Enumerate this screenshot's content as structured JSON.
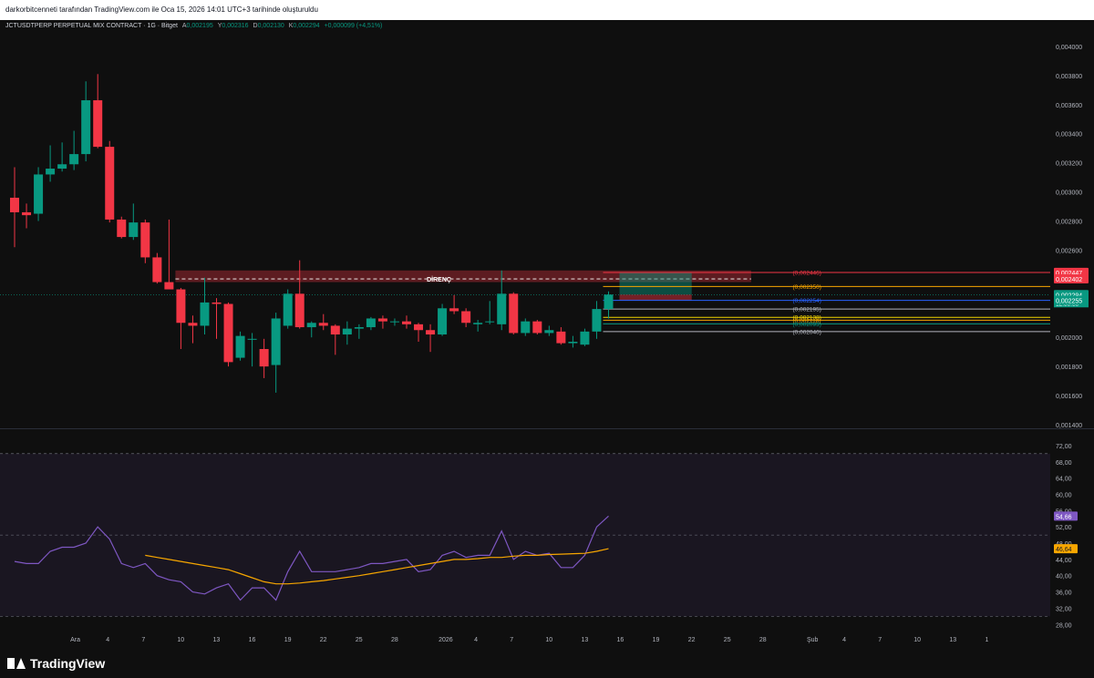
{
  "header": {
    "attribution": "darkorbitcenneti tarafından TradingView.com ile Oca 15, 2026 14:01 UTC+3 tarihinde oluşturuldu"
  },
  "legend": {
    "symbol": "JCTUSDTPERP PERPETUAL MIX CONTRACT · 1G · Bitget",
    "open_key": "A",
    "open": "0,002195",
    "high_key": "Y",
    "high": "0,002316",
    "low_key": "D",
    "low": "0,002130",
    "close_key": "K",
    "close": "0,002294",
    "change": "+0,000099 (+4,51%)"
  },
  "footer": {
    "logo": "TradingView"
  },
  "chart_data": [
    {
      "type": "candlestick",
      "title": "JCTUSDTPERP PERPETUAL MIX CONTRACT · 1G · Bitget",
      "ylim": [
        0.0014,
        0.0041
      ],
      "y_ticks": [
        "0,004000",
        "0,003800",
        "0,003600",
        "0,003400",
        "0,003200",
        "0,003000",
        "0,002800",
        "0,002600",
        "0,002000",
        "0,001800",
        "0,001600",
        "0,001400"
      ],
      "x_ticks": [
        {
          "i": 5,
          "label": "Ara"
        },
        {
          "i": 8,
          "label": "4"
        },
        {
          "i": 11,
          "label": "7"
        },
        {
          "i": 14,
          "label": "10"
        },
        {
          "i": 17,
          "label": "13"
        },
        {
          "i": 20,
          "label": "16"
        },
        {
          "i": 23,
          "label": "19"
        },
        {
          "i": 26,
          "label": "22"
        },
        {
          "i": 29,
          "label": "25"
        },
        {
          "i": 32,
          "label": "28"
        },
        {
          "i": 36,
          "label": "2026"
        },
        {
          "i": 39,
          "label": "4"
        },
        {
          "i": 42,
          "label": "7"
        },
        {
          "i": 45,
          "label": "10"
        },
        {
          "i": 48,
          "label": "13"
        },
        {
          "i": 51,
          "label": "16"
        },
        {
          "i": 54,
          "label": "19"
        },
        {
          "i": 57,
          "label": "22"
        },
        {
          "i": 60,
          "label": "25"
        },
        {
          "i": 63,
          "label": "28"
        },
        {
          "i": 67,
          "label": "Şub"
        },
        {
          "i": 70,
          "label": "4"
        },
        {
          "i": 73,
          "label": "7"
        },
        {
          "i": 76,
          "label": "10"
        },
        {
          "i": 79,
          "label": "13"
        },
        {
          "i": 82,
          "label": "1"
        }
      ],
      "candles": [
        {
          "o": 0.00296,
          "h": 0.00317,
          "l": 0.00262,
          "c": 0.00286
        },
        {
          "o": 0.00286,
          "h": 0.00292,
          "l": 0.00275,
          "c": 0.00284
        },
        {
          "o": 0.00285,
          "h": 0.00317,
          "l": 0.0028,
          "c": 0.00312
        },
        {
          "o": 0.00312,
          "h": 0.00332,
          "l": 0.00307,
          "c": 0.00316
        },
        {
          "o": 0.00316,
          "h": 0.00334,
          "l": 0.00314,
          "c": 0.00319
        },
        {
          "o": 0.00319,
          "h": 0.00342,
          "l": 0.00315,
          "c": 0.00326
        },
        {
          "o": 0.00326,
          "h": 0.00376,
          "l": 0.00321,
          "c": 0.00363
        },
        {
          "o": 0.00363,
          "h": 0.00381,
          "l": 0.0033,
          "c": 0.00331
        },
        {
          "o": 0.00331,
          "h": 0.00335,
          "l": 0.00279,
          "c": 0.00281
        },
        {
          "o": 0.00281,
          "h": 0.00283,
          "l": 0.00268,
          "c": 0.00269
        },
        {
          "o": 0.00269,
          "h": 0.00292,
          "l": 0.00267,
          "c": 0.00279
        },
        {
          "o": 0.00279,
          "h": 0.00281,
          "l": 0.00251,
          "c": 0.00255
        },
        {
          "o": 0.00255,
          "h": 0.00258,
          "l": 0.00237,
          "c": 0.00238
        },
        {
          "o": 0.00238,
          "h": 0.00281,
          "l": 0.00234,
          "c": 0.00233
        },
        {
          "o": 0.00233,
          "h": 0.00234,
          "l": 0.00192,
          "c": 0.0021
        },
        {
          "o": 0.0021,
          "h": 0.00215,
          "l": 0.00196,
          "c": 0.00208
        },
        {
          "o": 0.00208,
          "h": 0.00241,
          "l": 0.00202,
          "c": 0.00224
        },
        {
          "o": 0.00224,
          "h": 0.00227,
          "l": 0.00199,
          "c": 0.00223
        },
        {
          "o": 0.00223,
          "h": 0.00224,
          "l": 0.0018,
          "c": 0.00183
        },
        {
          "o": 0.00186,
          "h": 0.00204,
          "l": 0.00184,
          "c": 0.00201
        },
        {
          "o": 0.00199,
          "h": 0.00203,
          "l": 0.0018,
          "c": 0.00199
        },
        {
          "o": 0.00192,
          "h": 0.00199,
          "l": 0.00172,
          "c": 0.0018
        },
        {
          "o": 0.00181,
          "h": 0.00217,
          "l": 0.00162,
          "c": 0.00213
        },
        {
          "o": 0.00208,
          "h": 0.00233,
          "l": 0.00206,
          "c": 0.0023
        },
        {
          "o": 0.0023,
          "h": 0.00253,
          "l": 0.00206,
          "c": 0.00207
        },
        {
          "o": 0.00207,
          "h": 0.00211,
          "l": 0.002,
          "c": 0.0021
        },
        {
          "o": 0.0021,
          "h": 0.00216,
          "l": 0.00205,
          "c": 0.00208
        },
        {
          "o": 0.00208,
          "h": 0.00209,
          "l": 0.00188,
          "c": 0.00202
        },
        {
          "o": 0.00202,
          "h": 0.00211,
          "l": 0.00195,
          "c": 0.00206
        },
        {
          "o": 0.00206,
          "h": 0.00209,
          "l": 0.00199,
          "c": 0.00207
        },
        {
          "o": 0.00207,
          "h": 0.00214,
          "l": 0.00205,
          "c": 0.00213
        },
        {
          "o": 0.00213,
          "h": 0.00215,
          "l": 0.00206,
          "c": 0.00211
        },
        {
          "o": 0.00211,
          "h": 0.00213,
          "l": 0.00208,
          "c": 0.00211
        },
        {
          "o": 0.00211,
          "h": 0.00215,
          "l": 0.00206,
          "c": 0.00209
        },
        {
          "o": 0.00209,
          "h": 0.0021,
          "l": 0.00197,
          "c": 0.00205
        },
        {
          "o": 0.00205,
          "h": 0.00209,
          "l": 0.0019,
          "c": 0.00202
        },
        {
          "o": 0.00202,
          "h": 0.00223,
          "l": 0.00201,
          "c": 0.0022
        },
        {
          "o": 0.0022,
          "h": 0.00229,
          "l": 0.00216,
          "c": 0.00218
        },
        {
          "o": 0.00218,
          "h": 0.0022,
          "l": 0.00207,
          "c": 0.0021
        },
        {
          "o": 0.00209,
          "h": 0.00212,
          "l": 0.00204,
          "c": 0.0021
        },
        {
          "o": 0.00211,
          "h": 0.00225,
          "l": 0.00209,
          "c": 0.00211
        },
        {
          "o": 0.00209,
          "h": 0.00246,
          "l": 0.00205,
          "c": 0.0023
        },
        {
          "o": 0.0023,
          "h": 0.00231,
          "l": 0.00202,
          "c": 0.00203
        },
        {
          "o": 0.00203,
          "h": 0.00213,
          "l": 0.00201,
          "c": 0.00211
        },
        {
          "o": 0.00211,
          "h": 0.00212,
          "l": 0.00202,
          "c": 0.00203
        },
        {
          "o": 0.00203,
          "h": 0.00208,
          "l": 0.00201,
          "c": 0.00205
        },
        {
          "o": 0.00204,
          "h": 0.00207,
          "l": 0.00195,
          "c": 0.00196
        },
        {
          "o": 0.00196,
          "h": 0.00201,
          "l": 0.00193,
          "c": 0.00197
        },
        {
          "o": 0.00195,
          "h": 0.00206,
          "l": 0.00194,
          "c": 0.00204
        },
        {
          "o": 0.00204,
          "h": 0.00225,
          "l": 0.00199,
          "c": 0.002195
        },
        {
          "o": 0.002195,
          "h": 0.002316,
          "l": 0.00213,
          "c": 0.002294
        }
      ],
      "levels": [
        {
          "value": 0.002446,
          "label": "(0,002446)",
          "color": "#f23645"
        },
        {
          "value": 0.00235,
          "label": "(0,002350)",
          "color": "#f7a600"
        },
        {
          "value": 0.002254,
          "label": "(0,002254)",
          "color": "#2962ff"
        },
        {
          "value": 0.002195,
          "label": "(0,002195)",
          "color": "#b2b5be"
        },
        {
          "value": 0.002138,
          "label": "(0,002138)",
          "color": "#f7d800"
        },
        {
          "value": 0.002118,
          "label": "(0,002118)",
          "color": "#f7a600"
        },
        {
          "value": 0.002093,
          "label": "(0,002093)",
          "color": "#089981"
        },
        {
          "value": 0.00204,
          "label": "(0,002040)",
          "color": "#b2b5be"
        }
      ],
      "resistance": {
        "label": "DİRENÇ",
        "top": 0.00246,
        "bottom": 0.00238,
        "line": 0.002402
      },
      "price_badges": [
        {
          "value": 0.002447,
          "label": "0,002447",
          "color": "#f23645"
        },
        {
          "value": 0.002402,
          "label": "0,002402",
          "color": "#f23645"
        },
        {
          "value": 0.002294,
          "label": "0,002294",
          "color": "#089981"
        },
        {
          "value": 0.002255,
          "label": "0,002255",
          "color": "#089981"
        }
      ],
      "countdown": "12:58:38",
      "position": {
        "entry": 0.002294,
        "target": 0.002446,
        "stop": 0.002254
      },
      "colors": {
        "up": "#089981",
        "down": "#f23645"
      }
    },
    {
      "type": "line",
      "title": "RSI",
      "ylim": [
        26.5,
        74
      ],
      "y_ticks": [
        "72,00",
        "68,00",
        "64,00",
        "60,00",
        "56,00",
        "52,00",
        "48,00",
        "44,00",
        "40,00",
        "36,00",
        "32,00",
        "28,00"
      ],
      "bands": [
        30,
        50,
        70
      ],
      "series": [
        {
          "values": [
            43.5,
            43,
            43,
            46,
            47,
            47,
            48,
            52,
            49,
            43,
            42,
            43,
            40,
            39,
            38.5,
            36,
            35.5,
            37,
            38,
            34,
            37,
            37,
            34,
            41,
            46,
            41,
            41,
            41,
            41.5,
            42,
            43,
            43,
            43.5,
            44,
            41,
            41.5,
            45,
            46,
            44.5,
            45,
            45,
            51,
            44,
            46,
            45,
            45.5,
            42,
            42,
            45,
            52,
            54.66
          ],
          "color": "#7e57c2",
          "badge": "54,66"
        },
        {
          "values": [
            null,
            null,
            null,
            null,
            null,
            null,
            null,
            null,
            null,
            null,
            null,
            45,
            44.5,
            44,
            43.5,
            43,
            42.5,
            42,
            41.5,
            40.5,
            39.5,
            38.5,
            38,
            38,
            38.2,
            38.5,
            38.8,
            39.2,
            39.6,
            40,
            40.5,
            41,
            41.5,
            42,
            42.5,
            43,
            43.5,
            44,
            44,
            44.2,
            44.5,
            44.5,
            44.8,
            45,
            45,
            45.2,
            45.3,
            45.4,
            45.5,
            46,
            46.64
          ],
          "color": "#f7a600",
          "badge": "46,64"
        }
      ]
    }
  ]
}
